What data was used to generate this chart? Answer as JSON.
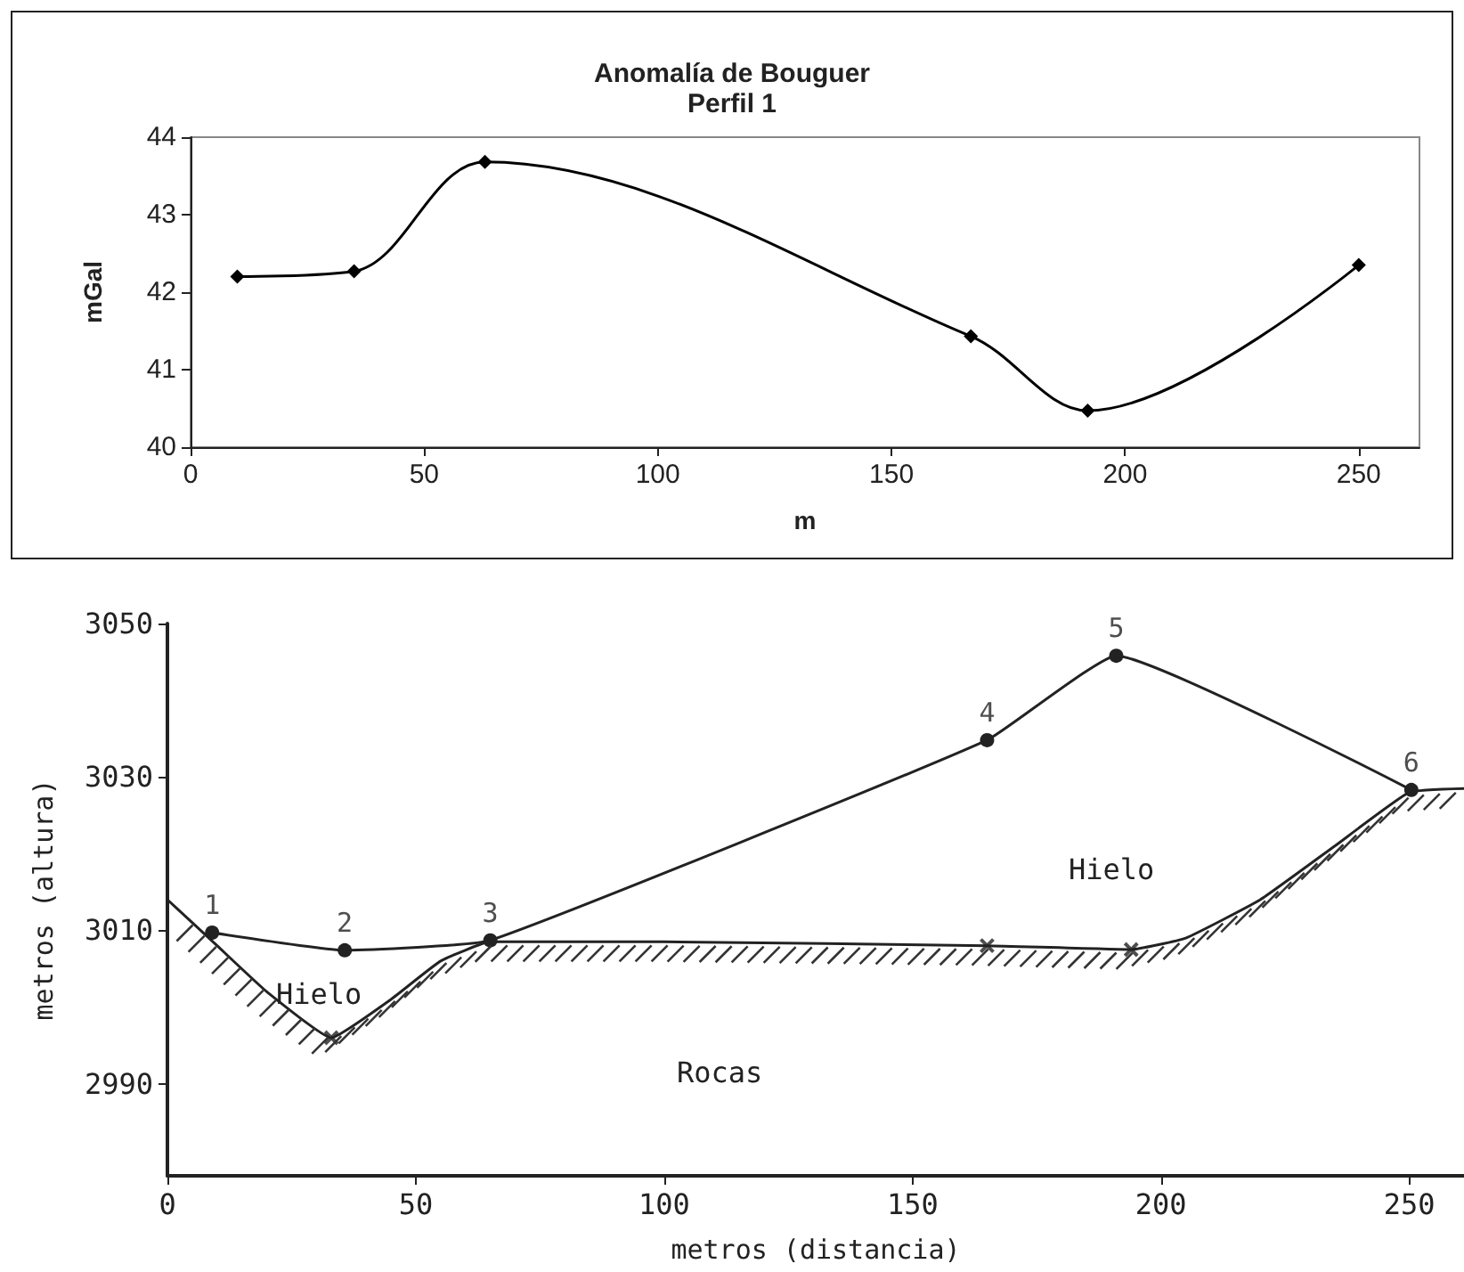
{
  "chart_data": [
    {
      "type": "line",
      "title": "Anomalía de Bouguer",
      "subtitle": "Perfil 1",
      "xlabel": "m",
      "ylabel": "mGal",
      "xlim": [
        0,
        263
      ],
      "xticks": [
        0,
        50,
        100,
        150,
        200,
        250
      ],
      "ylim": [
        40,
        44
      ],
      "yticks": [
        40,
        41,
        42,
        43,
        44
      ],
      "grid": false,
      "marker": "diamond",
      "line_style": "solid",
      "series": [
        {
          "color": "#000000",
          "x": [
            10,
            35,
            63,
            167,
            192,
            250
          ],
          "values": [
            42.2,
            42.27,
            43.68,
            41.43,
            40.47,
            42.35
          ]
        }
      ]
    },
    {
      "type": "line",
      "xlabel": "metros (distancia)",
      "ylabel": "metros (altura)",
      "xlim": [
        0,
        261
      ],
      "xticks": [
        0,
        50,
        100,
        150,
        200,
        250
      ],
      "ylim": [
        2978,
        3050
      ],
      "yticks": [
        2990,
        3010,
        3030,
        3050
      ],
      "grid": false,
      "line_style": "solid",
      "annotations": [
        "Hielo",
        "Hielo",
        "Rocas",
        {
          "text": "1",
          "x": 9,
          "y": 3009.7
        },
        {
          "text": "2",
          "x": 35.7,
          "y": 3007.4
        },
        {
          "text": "3",
          "x": 65,
          "y": 3008.7
        },
        {
          "text": "4",
          "x": 165,
          "y": 3034.8
        },
        {
          "text": "5",
          "x": 191,
          "y": 3045.8
        },
        {
          "text": "6",
          "x": 250.4,
          "y": 3028.3
        }
      ],
      "series": [
        {
          "color": "#222222",
          "marker": "circle",
          "x": [
            9,
            35.7,
            65,
            165,
            191,
            250.4
          ],
          "values": [
            3009.7,
            3007.4,
            3008.7,
            3034.8,
            3045.8,
            3028.3
          ]
        },
        {
          "color": "#222222",
          "marker": "none",
          "x": [
            0,
            10,
            20,
            33,
            45,
            55,
            65,
            100,
            165,
            194,
            205,
            220,
            235,
            250,
            261
          ],
          "values": [
            3014,
            3008,
            3002,
            2996,
            3001,
            3006,
            3008.5,
            3008.5,
            3008,
            3007.5,
            3009,
            3014,
            3021,
            3028,
            3028.5
          ]
        },
        {
          "type": "scatter",
          "color": "#222222",
          "marker": "cross",
          "x": [
            33,
            165,
            194
          ],
          "values": [
            2996,
            3008,
            3007.5
          ]
        }
      ]
    }
  ]
}
